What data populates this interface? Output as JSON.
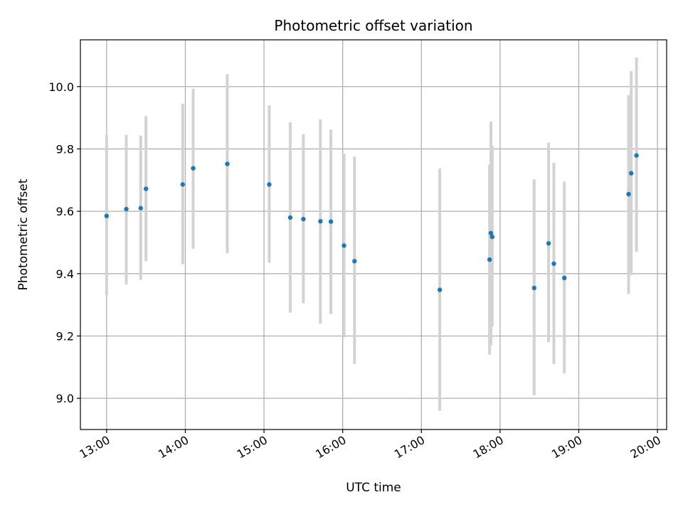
{
  "chart_data": {
    "type": "scatter",
    "title": "Photometric offset variation",
    "xlabel": "UTC time",
    "ylabel": "Photometric offset",
    "x_ticks": [
      "13:00",
      "14:00",
      "15:00",
      "16:00",
      "17:00",
      "18:00",
      "19:00",
      "20:00"
    ],
    "y_ticks": [
      "9.0",
      "9.2",
      "9.4",
      "9.6",
      "9.8",
      "10.0"
    ],
    "xlim": [
      "12:40",
      "20:07"
    ],
    "ylim": [
      8.9,
      10.15
    ],
    "grid": true,
    "colors": {
      "marker": "#1f77b4",
      "errorbar": "#d3d3d3",
      "grid": "#b0b0b0"
    },
    "points": [
      {
        "x": "13:00",
        "y": 9.585,
        "y_low": 9.33,
        "y_high": 9.845
      },
      {
        "x": "13:15",
        "y": 9.607,
        "y_low": 9.365,
        "y_high": 9.845
      },
      {
        "x": "13:26",
        "y": 9.61,
        "y_low": 9.38,
        "y_high": 9.843
      },
      {
        "x": "13:30",
        "y": 9.672,
        "y_low": 9.44,
        "y_high": 9.905
      },
      {
        "x": "13:58",
        "y": 9.686,
        "y_low": 9.43,
        "y_high": 9.945
      },
      {
        "x": "14:06",
        "y": 9.738,
        "y_low": 9.48,
        "y_high": 9.993
      },
      {
        "x": "14:32",
        "y": 9.752,
        "y_low": 9.465,
        "y_high": 10.04
      },
      {
        "x": "15:04",
        "y": 9.686,
        "y_low": 9.435,
        "y_high": 9.94
      },
      {
        "x": "15:20",
        "y": 9.58,
        "y_low": 9.275,
        "y_high": 9.885
      },
      {
        "x": "15:30",
        "y": 9.575,
        "y_low": 9.305,
        "y_high": 9.847
      },
      {
        "x": "15:43",
        "y": 9.568,
        "y_low": 9.24,
        "y_high": 9.895
      },
      {
        "x": "15:51",
        "y": 9.567,
        "y_low": 9.27,
        "y_high": 9.862
      },
      {
        "x": "16:01",
        "y": 9.49,
        "y_low": 9.195,
        "y_high": 9.785
      },
      {
        "x": "16:09",
        "y": 9.44,
        "y_low": 9.11,
        "y_high": 9.775
      },
      {
        "x": "17:14",
        "y": 9.348,
        "y_low": 8.96,
        "y_high": 9.737
      },
      {
        "x": "17:52",
        "y": 9.445,
        "y_low": 9.14,
        "y_high": 9.75
      },
      {
        "x": "17:53",
        "y": 9.53,
        "y_low": 9.17,
        "y_high": 9.888
      },
      {
        "x": "17:54",
        "y": 9.518,
        "y_low": 9.23,
        "y_high": 9.81
      },
      {
        "x": "18:26",
        "y": 9.354,
        "y_low": 9.01,
        "y_high": 9.702
      },
      {
        "x": "18:37",
        "y": 9.497,
        "y_low": 9.18,
        "y_high": 9.82
      },
      {
        "x": "18:41",
        "y": 9.432,
        "y_low": 9.11,
        "y_high": 9.755
      },
      {
        "x": "18:49",
        "y": 9.386,
        "y_low": 9.08,
        "y_high": 9.695
      },
      {
        "x": "19:38",
        "y": 9.655,
        "y_low": 9.335,
        "y_high": 9.973
      },
      {
        "x": "19:40",
        "y": 9.722,
        "y_low": 9.395,
        "y_high": 10.05
      },
      {
        "x": "19:44",
        "y": 9.779,
        "y_low": 9.47,
        "y_high": 10.093
      }
    ]
  }
}
